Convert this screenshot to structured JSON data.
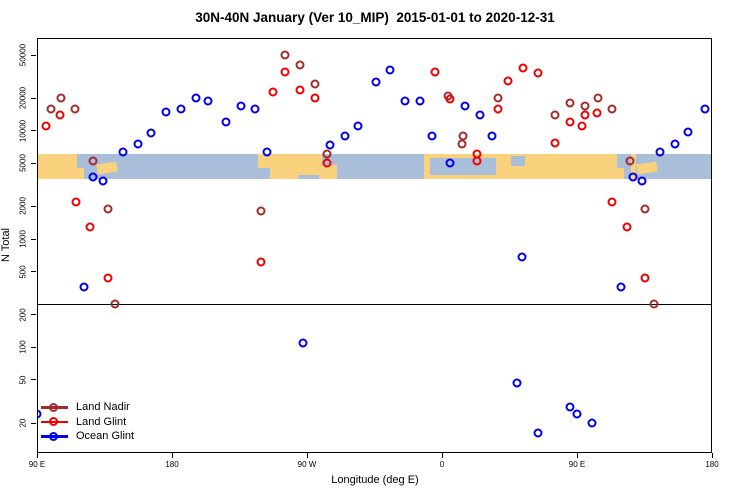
{
  "title": "30N-40N January (Ver 10_MIP)  2015-01-01 to 2020-12-31",
  "chart_data": {
    "type": "scatter",
    "title": "30N-40N January (Ver 10_MIP)  2015-01-01 to 2020-12-31",
    "xlabel": "Longitude (deg E)",
    "ylabel": "N Total",
    "x_axis": {
      "unit": "deg E",
      "range_deg": [
        90,
        540
      ],
      "ticks": [
        {
          "t": 90,
          "label": "90 E"
        },
        {
          "t": 180,
          "label": "180"
        },
        {
          "t": 270,
          "label": "90 W"
        },
        {
          "t": 360,
          "label": "0"
        },
        {
          "t": 450,
          "label": "90 E"
        },
        {
          "t": 540,
          "label": "180"
        }
      ]
    },
    "y_axis": {
      "scale": "log",
      "ylim": [
        11,
        72000
      ],
      "ticks": [
        20,
        50,
        100,
        200,
        500,
        1000,
        2000,
        5000,
        10000,
        20000,
        50000
      ]
    },
    "reference_line_y": 250,
    "map_band": {
      "value_range": [
        3600,
        6100
      ],
      "ocean_color": "#A9BED9",
      "land_color": "#FAD27D",
      "land_segments_deg": [
        [
          90,
          121
        ],
        [
          237,
          290
        ],
        [
          348,
          481
        ],
        [
          486,
          489.5
        ]
      ],
      "thin_land_segments_deg": [
        [
          130,
          143.5
        ],
        [
          490,
          503.5
        ]
      ],
      "thin_fraction": [
        0.35,
        0.75
      ],
      "ocean_patches": [
        {
          "t0": 116.5,
          "t1": 121,
          "f0": 0,
          "f1": 0.55
        },
        {
          "t0": 237,
          "t1": 245,
          "f0": 0.55,
          "f1": 1
        },
        {
          "t0": 264,
          "t1": 278,
          "f0": 0.85,
          "f1": 1
        },
        {
          "t0": 280,
          "t1": 290,
          "f0": 0,
          "f1": 0.45
        },
        {
          "t0": 352,
          "t1": 396,
          "f0": 0.18,
          "f1": 0.85
        },
        {
          "t0": 406,
          "t1": 415,
          "f0": 0.1,
          "f1": 0.5
        },
        {
          "t0": 476.5,
          "t1": 481,
          "f0": 0,
          "f1": 0.55
        }
      ]
    },
    "series": [
      {
        "name": "Land Nadir",
        "color": "#A52A2A",
        "points": [
          [
            99,
            16000
          ],
          [
            106,
            20000
          ],
          [
            115,
            16000
          ],
          [
            127,
            5200
          ],
          [
            137,
            1900
          ],
          [
            142,
            250
          ],
          [
            239,
            1800
          ],
          [
            255,
            50000
          ],
          [
            265,
            40000
          ],
          [
            275,
            27000
          ],
          [
            283,
            6100
          ],
          [
            364,
            21000
          ],
          [
            373,
            7500
          ],
          [
            374,
            8900
          ],
          [
            397,
            20000
          ],
          [
            435,
            14000
          ],
          [
            445,
            18000
          ],
          [
            455,
            17000
          ],
          [
            464,
            20000
          ],
          [
            473,
            16000
          ],
          [
            485,
            5200
          ],
          [
            495,
            1900
          ],
          [
            501,
            250
          ]
        ]
      },
      {
        "name": "Land Glint",
        "color": "#EE0000",
        "points": [
          [
            96,
            11000
          ],
          [
            105,
            14000
          ],
          [
            116,
            2200
          ],
          [
            125,
            1300
          ],
          [
            137,
            440
          ],
          [
            239,
            610
          ],
          [
            247,
            23000
          ],
          [
            255,
            35000
          ],
          [
            265,
            24000
          ],
          [
            275,
            20000
          ],
          [
            283,
            5000
          ],
          [
            355,
            35000
          ],
          [
            365,
            19500
          ],
          [
            383,
            6100
          ],
          [
            383,
            5200
          ],
          [
            397,
            16000
          ],
          [
            404,
            29000
          ],
          [
            414,
            38000
          ],
          [
            424,
            34000
          ],
          [
            435,
            7700
          ],
          [
            445,
            12000
          ],
          [
            453,
            11000
          ],
          [
            455,
            14000
          ],
          [
            463,
            14500
          ],
          [
            473,
            2200
          ],
          [
            483,
            1300
          ],
          [
            495,
            440
          ]
        ]
      },
      {
        "name": "Ocean Glint",
        "color": "#0000EE",
        "points": [
          [
            90,
            24
          ],
          [
            121,
            360
          ],
          [
            127,
            3700
          ],
          [
            134,
            3400
          ],
          [
            147,
            6400
          ],
          [
            157,
            7500
          ],
          [
            166,
            9500
          ],
          [
            176,
            15000
          ],
          [
            186,
            16000
          ],
          [
            196,
            20000
          ],
          [
            204,
            19000
          ],
          [
            216,
            12000
          ],
          [
            226,
            17000
          ],
          [
            235,
            16000
          ],
          [
            243,
            6300
          ],
          [
            267,
            110
          ],
          [
            285,
            7400
          ],
          [
            295,
            8900
          ],
          [
            304,
            11000
          ],
          [
            316,
            28000
          ],
          [
            325,
            36000
          ],
          [
            335,
            19000
          ],
          [
            345,
            19000
          ],
          [
            353,
            8900
          ],
          [
            365,
            5000
          ],
          [
            375,
            17000
          ],
          [
            385,
            14000
          ],
          [
            393,
            8900
          ],
          [
            410,
            47
          ],
          [
            413,
            680
          ],
          [
            424,
            16
          ],
          [
            445,
            28
          ],
          [
            450,
            24
          ],
          [
            460,
            20
          ],
          [
            479,
            360
          ],
          [
            487,
            3700
          ],
          [
            493,
            3400
          ],
          [
            505,
            6300
          ],
          [
            515,
            7500
          ],
          [
            524,
            9700
          ],
          [
            535,
            16000
          ]
        ]
      }
    ],
    "legend": {
      "position": "bottom-left",
      "items": [
        "Land Nadir",
        "Land Glint",
        "Ocean Glint"
      ]
    },
    "grid": false
  }
}
